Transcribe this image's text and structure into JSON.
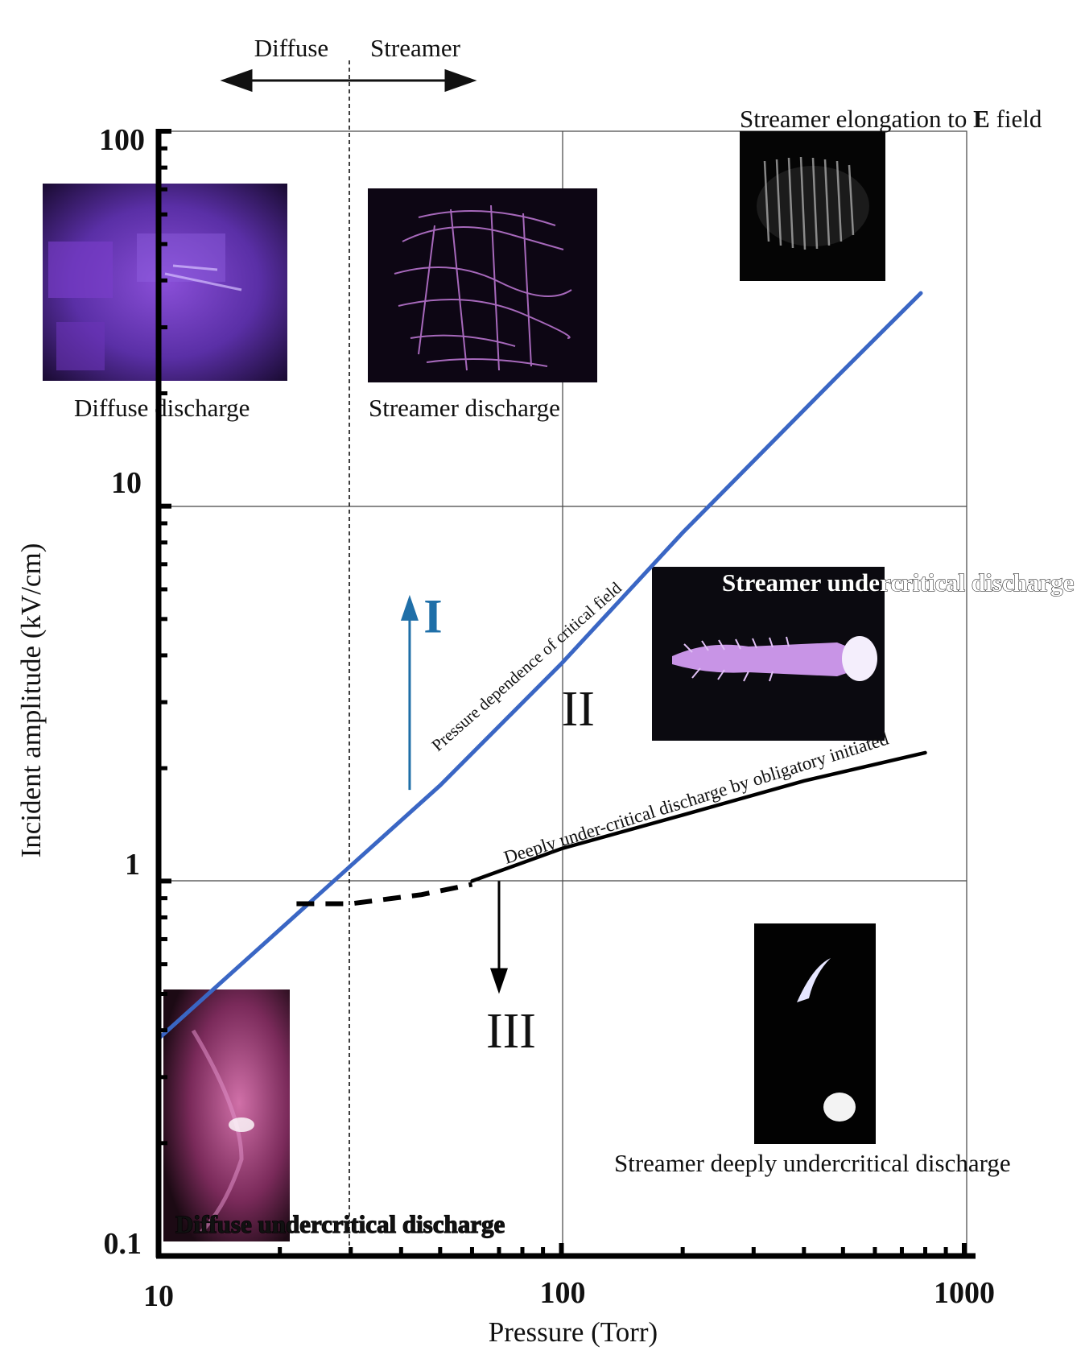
{
  "chart_data": {
    "type": "line",
    "xscale": "log",
    "yscale": "log",
    "xlabel": "Pressure (Torr)",
    "ylabel": "Incident amplitude (kV/cm)",
    "xlim": [
      10,
      1000
    ],
    "ylim": [
      0.1,
      100
    ],
    "x_ticks": [
      "10",
      "100",
      "1000"
    ],
    "y_ticks": [
      "0.1",
      "1",
      "10",
      "100"
    ],
    "grid": true,
    "series": [
      {
        "name": "Pressure dependence of critical field",
        "style": "solid",
        "color": "#3a66c4",
        "x": [
          10,
          50,
          100,
          200,
          480,
          780
        ],
        "y": [
          0.38,
          1.8,
          3.8,
          8.5,
          22,
          37
        ]
      },
      {
        "name": "Deeply under-critical discharge by obligatory initiated",
        "style": "solid",
        "color": "#000000",
        "x": [
          60,
          100,
          200,
          400,
          800
        ],
        "y": [
          1.0,
          1.22,
          1.5,
          1.85,
          2.2
        ]
      },
      {
        "name": "",
        "style": "dashed",
        "color": "#000000",
        "x": [
          22,
          30,
          45,
          60
        ],
        "y": [
          0.87,
          0.87,
          0.92,
          0.98
        ]
      }
    ],
    "regime_boundary": {
      "x": 30,
      "left_label": "Diffuse",
      "right_label": "Streamer"
    },
    "region_labels": [
      {
        "text": "I",
        "x": 48,
        "y": 4.6,
        "color": "#1f6fa8"
      },
      {
        "text": "II",
        "x": 110,
        "y": 2.6,
        "color": "#111111"
      },
      {
        "text": "III",
        "x": 75,
        "y": 0.36,
        "color": "#111111"
      }
    ],
    "arrows": [
      {
        "direction": "up",
        "x": 42,
        "from_y": 1.75,
        "to_y": 5.8,
        "color": "#1f6fa8"
      },
      {
        "direction": "down",
        "x": 70,
        "from_y": 1.0,
        "to_y": 0.5,
        "color": "#000000"
      }
    ],
    "photos": [
      {
        "caption": "Diffuse discharge",
        "tone": "diffuse"
      },
      {
        "caption": "Streamer discharge",
        "tone": "streamer"
      },
      {
        "caption": "Streamer elongation to E field",
        "tone": "elongation"
      },
      {
        "caption": "Streamer undercritical discharge",
        "tone": "undercritical"
      },
      {
        "caption": "Streamer deeply undercritical discharge",
        "tone": "deep"
      },
      {
        "caption": "Diffuse undercritical discharge",
        "tone": "diffuse-under"
      }
    ]
  }
}
